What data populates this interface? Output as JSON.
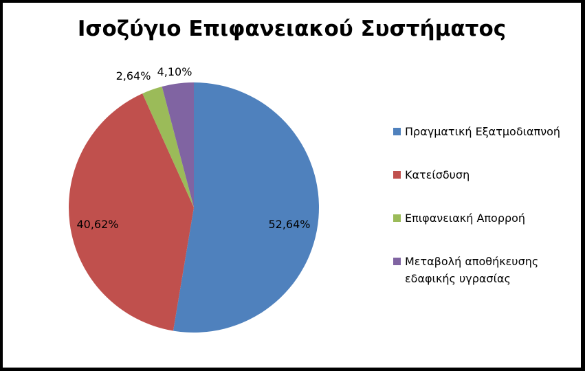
{
  "chart_data": {
    "type": "pie",
    "title": "Ισοζύγιο Επιφανειακού Συστήματος",
    "slices": [
      {
        "label": "Πραγματική Εξατμοδιαπνοή",
        "value": 52.64,
        "value_label": "52,64%",
        "color": "#4F81BD"
      },
      {
        "label": "Κατείσδυση",
        "value": 40.62,
        "value_label": "40,62%",
        "color": "#C0504D"
      },
      {
        "label": "Επιφανειακή Απορροή",
        "value": 2.64,
        "value_label": "2,64%",
        "color": "#9BBB59"
      },
      {
        "label": [
          "Μεταβολή αποθήκευσης",
          "εδαφικής υγρασίας"
        ],
        "value": 4.1,
        "value_label": "4,10%",
        "color": "#8064A2"
      }
    ],
    "legend_position": "right"
  }
}
